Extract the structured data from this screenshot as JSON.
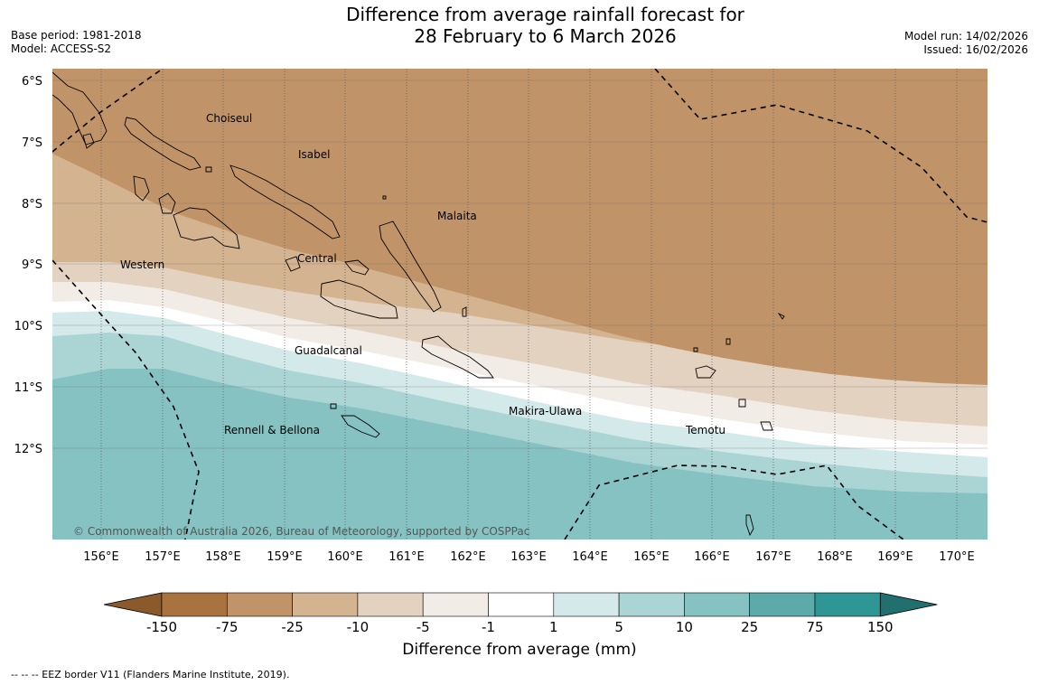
{
  "header": {
    "title_line1": "Difference from average rainfall forecast for",
    "title_line2": "28 February to 6 March 2026",
    "base_period": "Base period: 1981-2018",
    "model": "Model: ACCESS-S2",
    "model_run": "Model run: 14/02/2026",
    "issued": "Issued: 16/02/2026"
  },
  "map": {
    "lat_labels": [
      "6°S",
      "7°S",
      "8°S",
      "9°S",
      "10°S",
      "11°S",
      "12°S"
    ],
    "lon_labels": [
      "156°E",
      "157°E",
      "158°E",
      "159°E",
      "160°E",
      "161°E",
      "162°E",
      "163°E",
      "164°E",
      "165°E",
      "166°E",
      "167°E",
      "168°E",
      "169°E",
      "170°E"
    ],
    "region_labels": [
      "Choiseul",
      "Isabel",
      "Malaita",
      "Western",
      "Central",
      "Guadalcanal",
      "Makira-Ulawa",
      "Temotu",
      "Rennell & Bellona"
    ],
    "copyright": "© Commonwealth of Australia 2026, Bureau of Meteorology, supported by COSPPac"
  },
  "colorbar": {
    "title": "Difference from average (mm)",
    "tick_labels": [
      "-150",
      "-75",
      "-25",
      "-10",
      "-5",
      "-1",
      "1",
      "5",
      "10",
      "25",
      "75",
      "150"
    ],
    "colors": [
      "#8b5a2b",
      "#a8733f",
      "#c09468",
      "#d4b390",
      "#e4d2c1",
      "#f2ece6",
      "#ffffff",
      "#d4e9e9",
      "#abd4d4",
      "#86c2c2",
      "#5daaaa",
      "#2f9696",
      "#226f6f"
    ]
  },
  "footer": {
    "legend": "--  --  -- EEZ border V11 (Flanders Marine Institute, 2019)."
  }
}
